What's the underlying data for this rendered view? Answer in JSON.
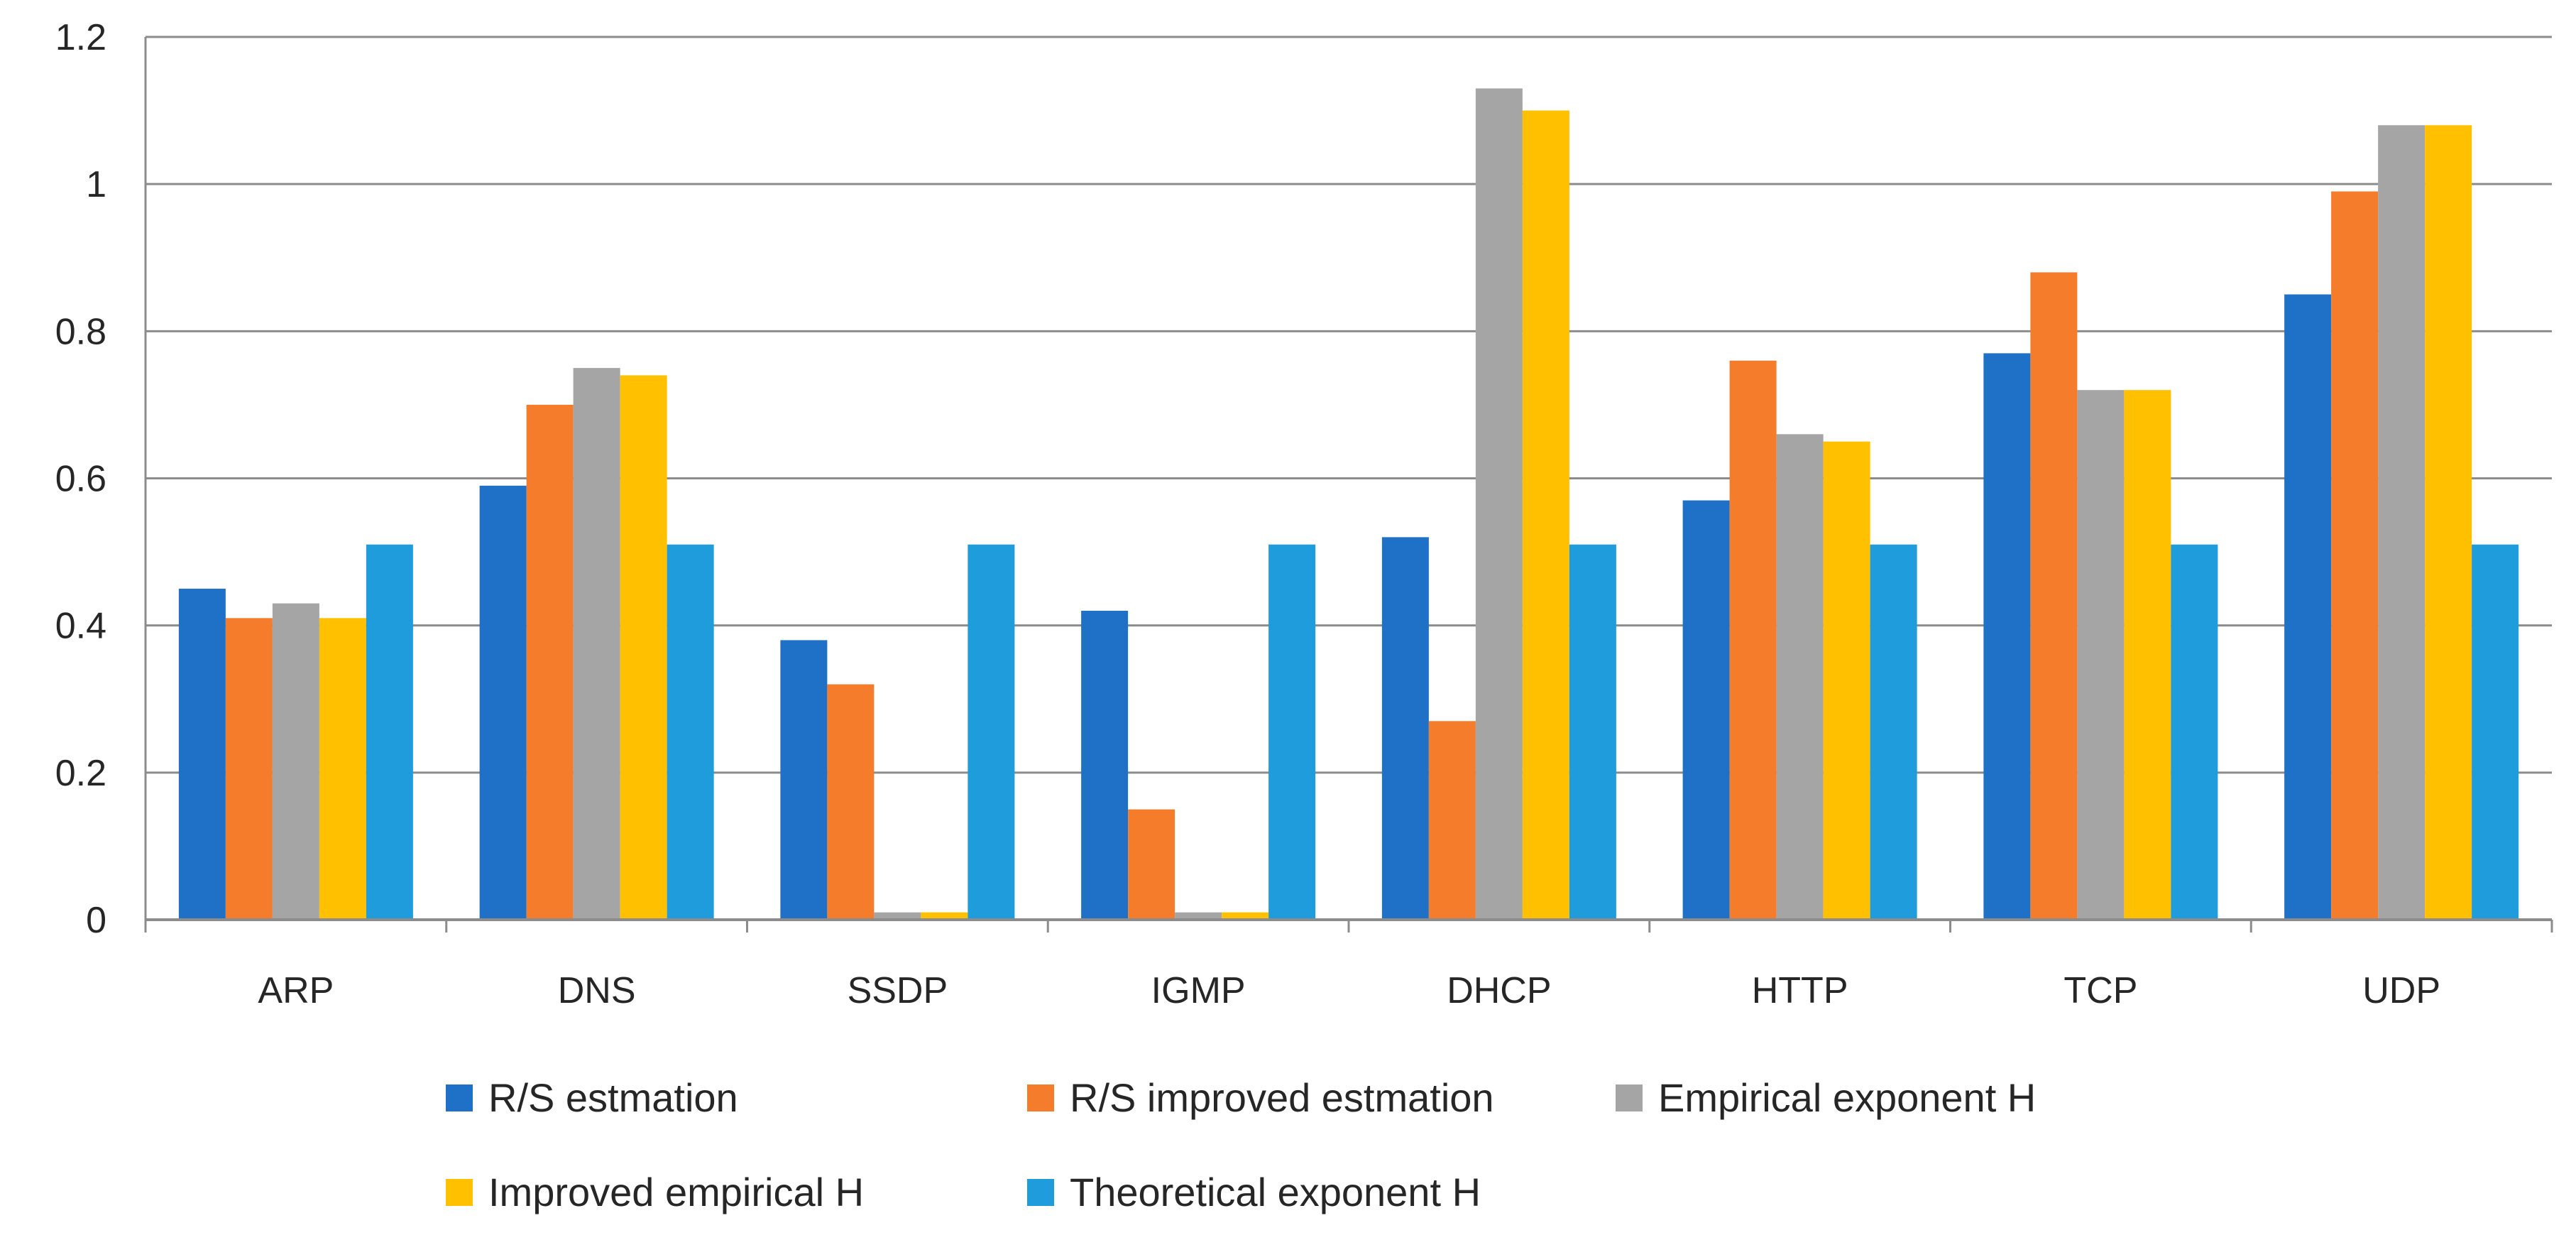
{
  "chart_data": {
    "type": "bar",
    "title": "",
    "xlabel": "",
    "ylabel": "",
    "ylim": [
      0,
      1.2
    ],
    "yticks": [
      "0",
      "0.2",
      "0.4",
      "0.6",
      "0.8",
      "1",
      "1.2"
    ],
    "grid": true,
    "legend_position": "bottom",
    "categories": [
      "ARP",
      "DNS",
      "SSDP",
      "IGMP",
      "DHCP",
      "HTTP",
      "TCP",
      "UDP"
    ],
    "series": [
      {
        "name": "R/S estmation",
        "color": "#1F71C8",
        "values": [
          0.45,
          0.59,
          0.38,
          0.42,
          0.52,
          0.57,
          0.77,
          0.85
        ]
      },
      {
        "name": "R/S improved estmation",
        "color": "#F47C2A",
        "values": [
          0.41,
          0.7,
          0.32,
          0.15,
          0.27,
          0.76,
          0.88,
          0.99
        ]
      },
      {
        "name": "Empirical exponent H",
        "color": "#A5A5A5",
        "values": [
          0.43,
          0.75,
          0.01,
          0.01,
          1.13,
          0.66,
          0.72,
          1.08
        ]
      },
      {
        "name": "Improved empirical H",
        "color": "#FFC000",
        "values": [
          0.41,
          0.74,
          0.01,
          0.01,
          1.1,
          0.65,
          0.72,
          1.08
        ]
      },
      {
        "name": "Theoretical exponent H",
        "color": "#1E9CDB",
        "values": [
          0.51,
          0.51,
          0.51,
          0.51,
          0.51,
          0.51,
          0.51,
          0.51
        ]
      }
    ]
  }
}
